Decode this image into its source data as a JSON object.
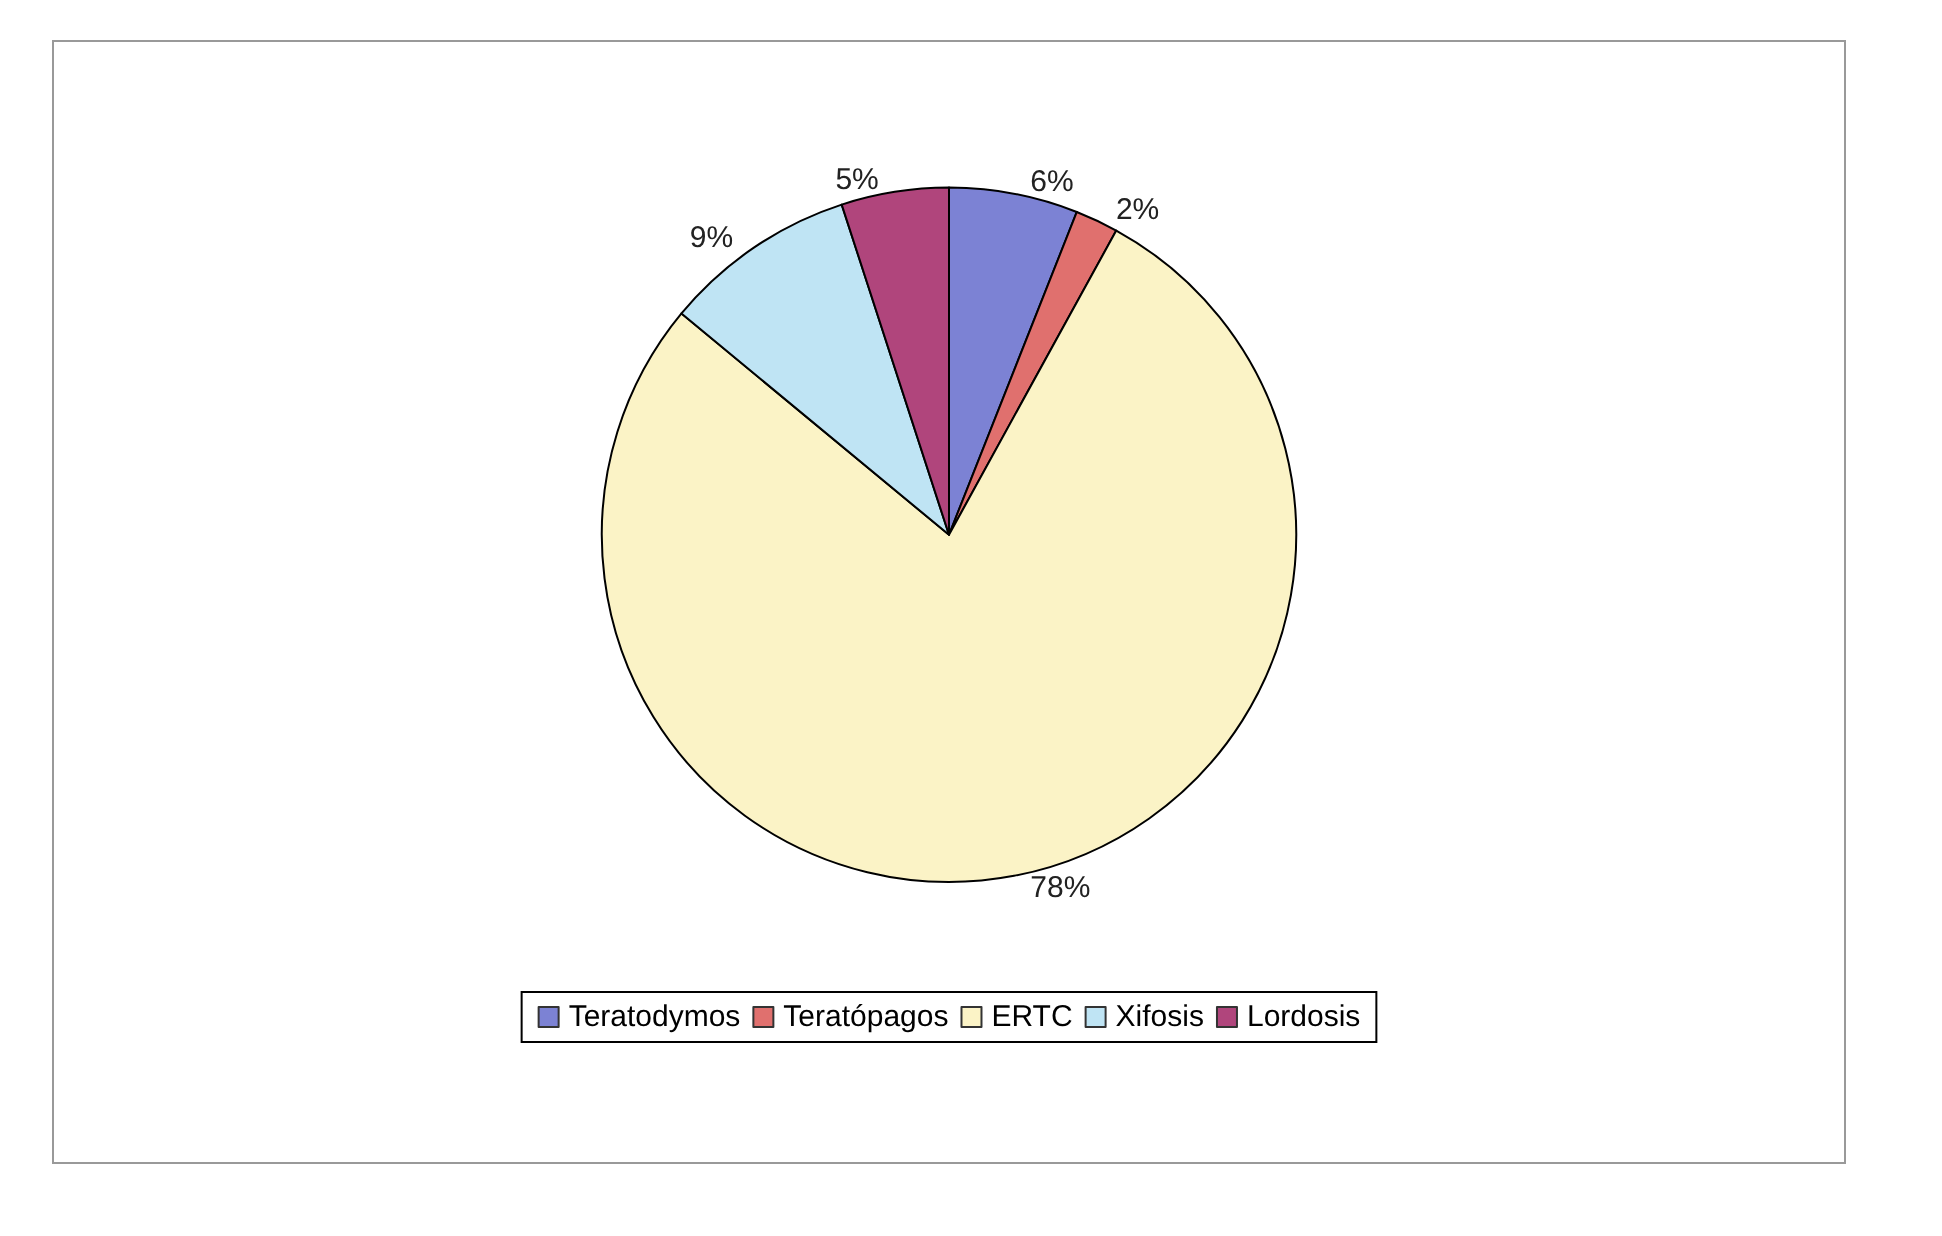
{
  "chart_data": {
    "type": "pie",
    "categories": [
      "Teratodymos",
      "Teratópagos",
      "ERTC",
      "Xifosis",
      "Lordosis"
    ],
    "values": [
      6,
      2,
      78,
      9,
      5
    ],
    "colors": [
      "#7c82d4",
      "#e0706e",
      "#fbf3c6",
      "#bfe4f4",
      "#b0457c"
    ],
    "value_labels": [
      "6%",
      "2%",
      "78%",
      "9%",
      "5%"
    ],
    "legend": "bottom"
  }
}
